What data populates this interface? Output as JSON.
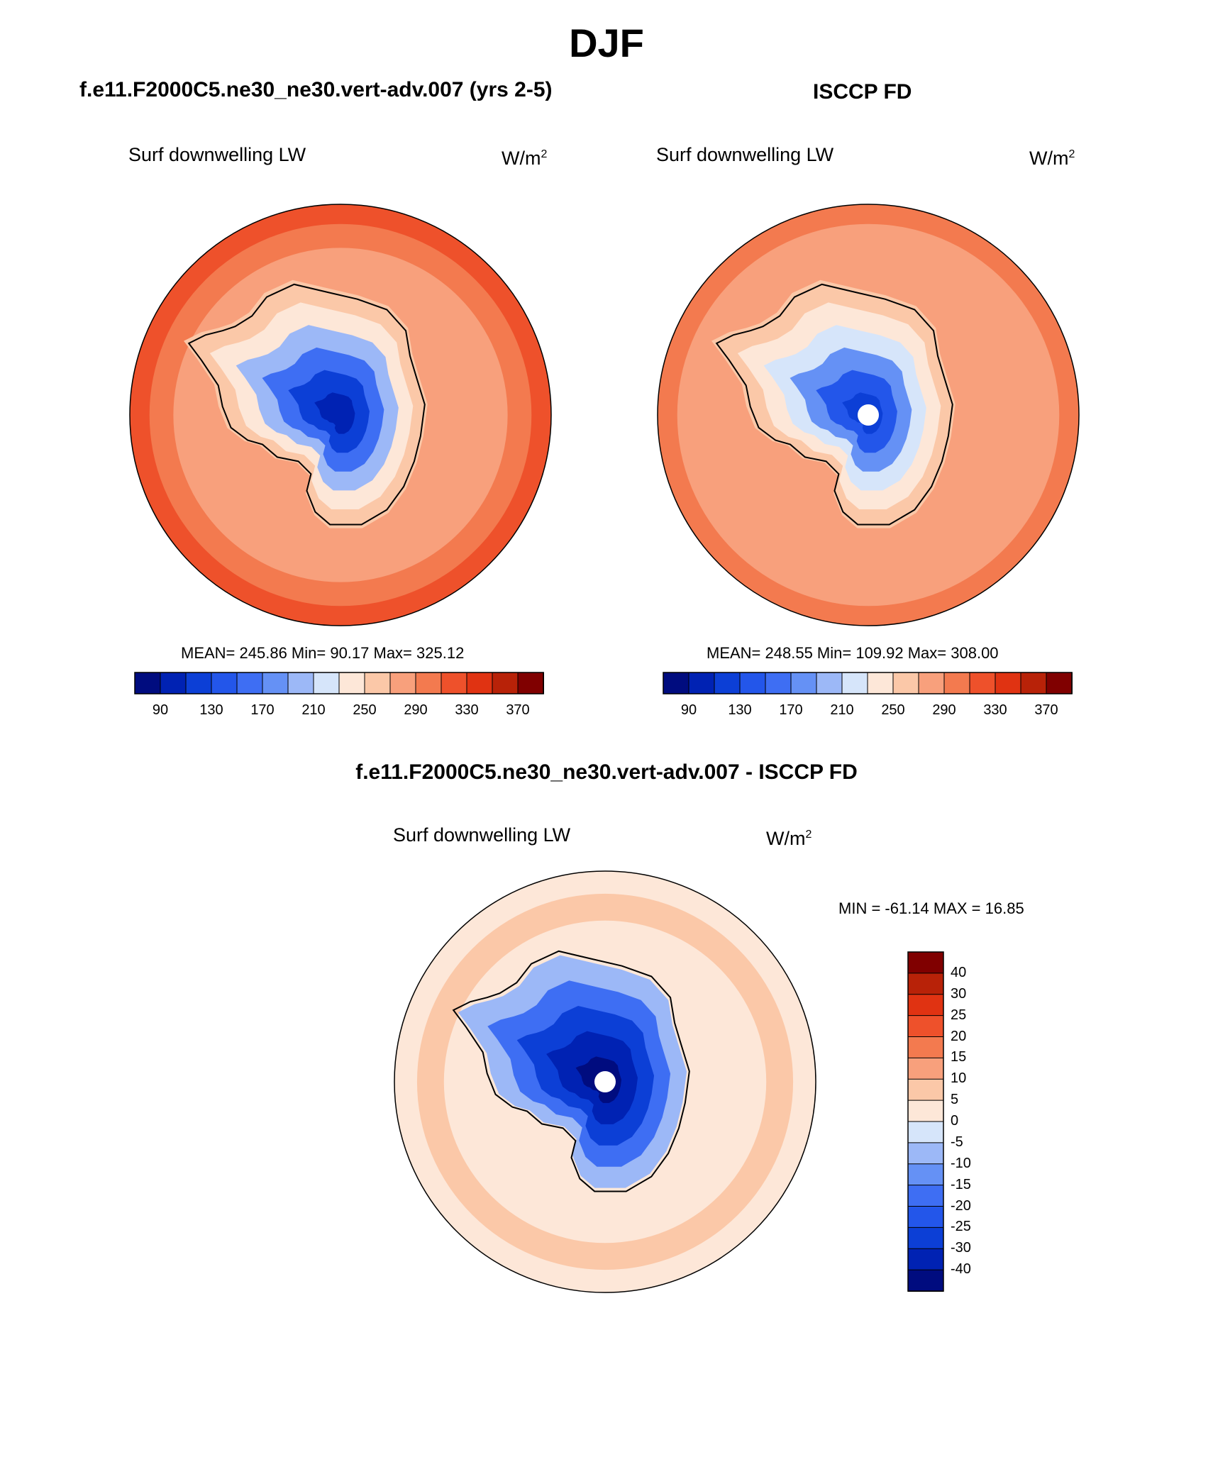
{
  "page_title": "DJF",
  "panels": [
    {
      "case_title": "f.e11.F2000C5.ne30_ne30.vert-adv.007 (yrs 2-5)",
      "variable": "Surf downwelling LW",
      "units_base": "W/m",
      "units_exp": "2",
      "stats": "MEAN= 245.86  Min=  90.17  Max= 325.12",
      "has_pole_hole": false
    },
    {
      "case_title": "ISCCP FD",
      "variable": "Surf downwelling LW",
      "units_base": "W/m",
      "units_exp": "2",
      "stats": "MEAN= 248.55  Min= 109.92  Max= 308.00",
      "has_pole_hole": true
    }
  ],
  "abs_colorbar": {
    "colors": [
      "#000c7f",
      "#0022b3",
      "#0c3fd6",
      "#2356ea",
      "#3e6ef3",
      "#6591f5",
      "#9cb8f7",
      "#d6e5fa",
      "#fde7d8",
      "#fbc8a8",
      "#f8a07c",
      "#f37a4f",
      "#ee512b",
      "#e03312",
      "#b82208",
      "#800000"
    ],
    "labels": [
      "90",
      "130",
      "170",
      "210",
      "250",
      "290",
      "330",
      "370"
    ]
  },
  "diff_panel": {
    "title": "f.e11.F2000C5.ne30_ne30.vert-adv.007 - ISCCP FD",
    "variable": "Surf downwelling LW",
    "units_base": "W/m",
    "units_exp": "2",
    "stats": "MIN = -61.14 MAX =  16.85"
  },
  "diff_colorbar": {
    "colors": [
      "#800000",
      "#b82208",
      "#e03312",
      "#ee512b",
      "#f37a4f",
      "#f8a07c",
      "#fbc8a8",
      "#fde7d8",
      "#d6e5fa",
      "#9cb8f7",
      "#6591f5",
      "#3e6ef3",
      "#2356ea",
      "#0c3fd6",
      "#0022b3",
      "#000c7f"
    ],
    "labels": [
      "40",
      "30",
      "25",
      "20",
      "15",
      "10",
      "5",
      "0",
      "-5",
      "-10",
      "-15",
      "-20",
      "-25",
      "-30",
      "-40"
    ]
  },
  "chart_data": [
    {
      "type": "heatmap",
      "projection": "south-polar-stereographic",
      "title": "Surf downwelling LW",
      "case": "f.e11.F2000C5.ne30_ne30.vert-adv.007 (yrs 2-5)",
      "units": "W/m2",
      "mean": 245.86,
      "min": 90.17,
      "max": 325.12,
      "levels": [
        90,
        110,
        130,
        150,
        170,
        190,
        210,
        230,
        250,
        270,
        290,
        310,
        330,
        350,
        370
      ],
      "ring_values_outer_to_pole": [
        315,
        300,
        280,
        265,
        240,
        200,
        160,
        120,
        100
      ]
    },
    {
      "type": "heatmap",
      "projection": "south-polar-stereographic",
      "title": "Surf downwelling LW",
      "case": "ISCCP FD",
      "units": "W/m2",
      "mean": 248.55,
      "min": 109.92,
      "max": 308.0,
      "levels": [
        90,
        110,
        130,
        150,
        170,
        190,
        210,
        230,
        250,
        270,
        290,
        310,
        330,
        350,
        370
      ],
      "ring_values_outer_to_pole": [
        300,
        285,
        270,
        255,
        240,
        210,
        170,
        140,
        120
      ]
    },
    {
      "type": "heatmap",
      "projection": "south-polar-stereographic",
      "title": "Surf downwelling LW",
      "case": "f.e11.F2000C5.ne30_ne30.vert-adv.007 - ISCCP FD",
      "units": "W/m2",
      "min": -61.14,
      "max": 16.85,
      "levels": [
        -40,
        -30,
        -25,
        -20,
        -15,
        -10,
        -5,
        0,
        5,
        10,
        15,
        20,
        25,
        30,
        40
      ],
      "ring_values_outer_to_pole": [
        3,
        7,
        3,
        -8,
        -20,
        -28,
        -35,
        -45
      ]
    }
  ]
}
